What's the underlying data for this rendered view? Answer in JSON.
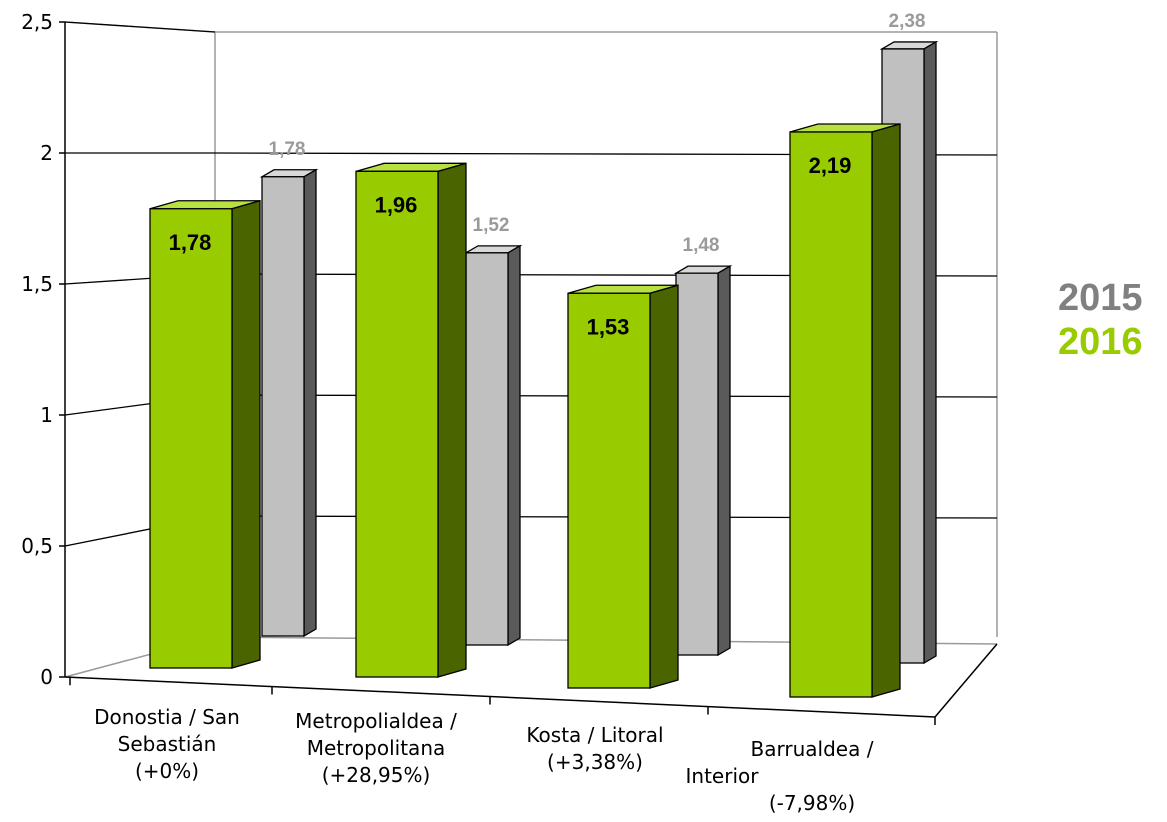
{
  "chart_data": {
    "type": "bar",
    "title": "",
    "xlabel": "",
    "ylabel": "",
    "ylim": [
      0,
      2.5
    ],
    "yticks": [
      "0",
      "0,5",
      "1",
      "1,5",
      "2",
      "2,5"
    ],
    "grid": true,
    "legend_position": "right",
    "categories": [
      [
        "Donostia / San",
        "Sebastián",
        "(+0%)"
      ],
      [
        "Metropolialdea /",
        "Metropolitana",
        "(+28,95%)"
      ],
      [
        "Kosta / Litoral",
        "(+3,38%)"
      ],
      [
        "Barrualdea /",
        "Interior",
        "(-7,98%)"
      ]
    ],
    "series": [
      {
        "name": "2016",
        "values": [
          1.78,
          1.96,
          1.53,
          2.19
        ],
        "labels": [
          "1,78",
          "1,96",
          "1,53",
          "2,19"
        ],
        "color": "#99cc00"
      },
      {
        "name": "2015",
        "values": [
          1.78,
          1.52,
          1.48,
          2.38
        ],
        "labels": [
          "1,78",
          "1,52",
          "1,48",
          "2,38"
        ],
        "color": "#c0c0c0"
      }
    ]
  },
  "legend": {
    "label_2015": "2015",
    "color_2015": "#808080",
    "label_2016": "2016",
    "color_2016": "#99cc00"
  }
}
